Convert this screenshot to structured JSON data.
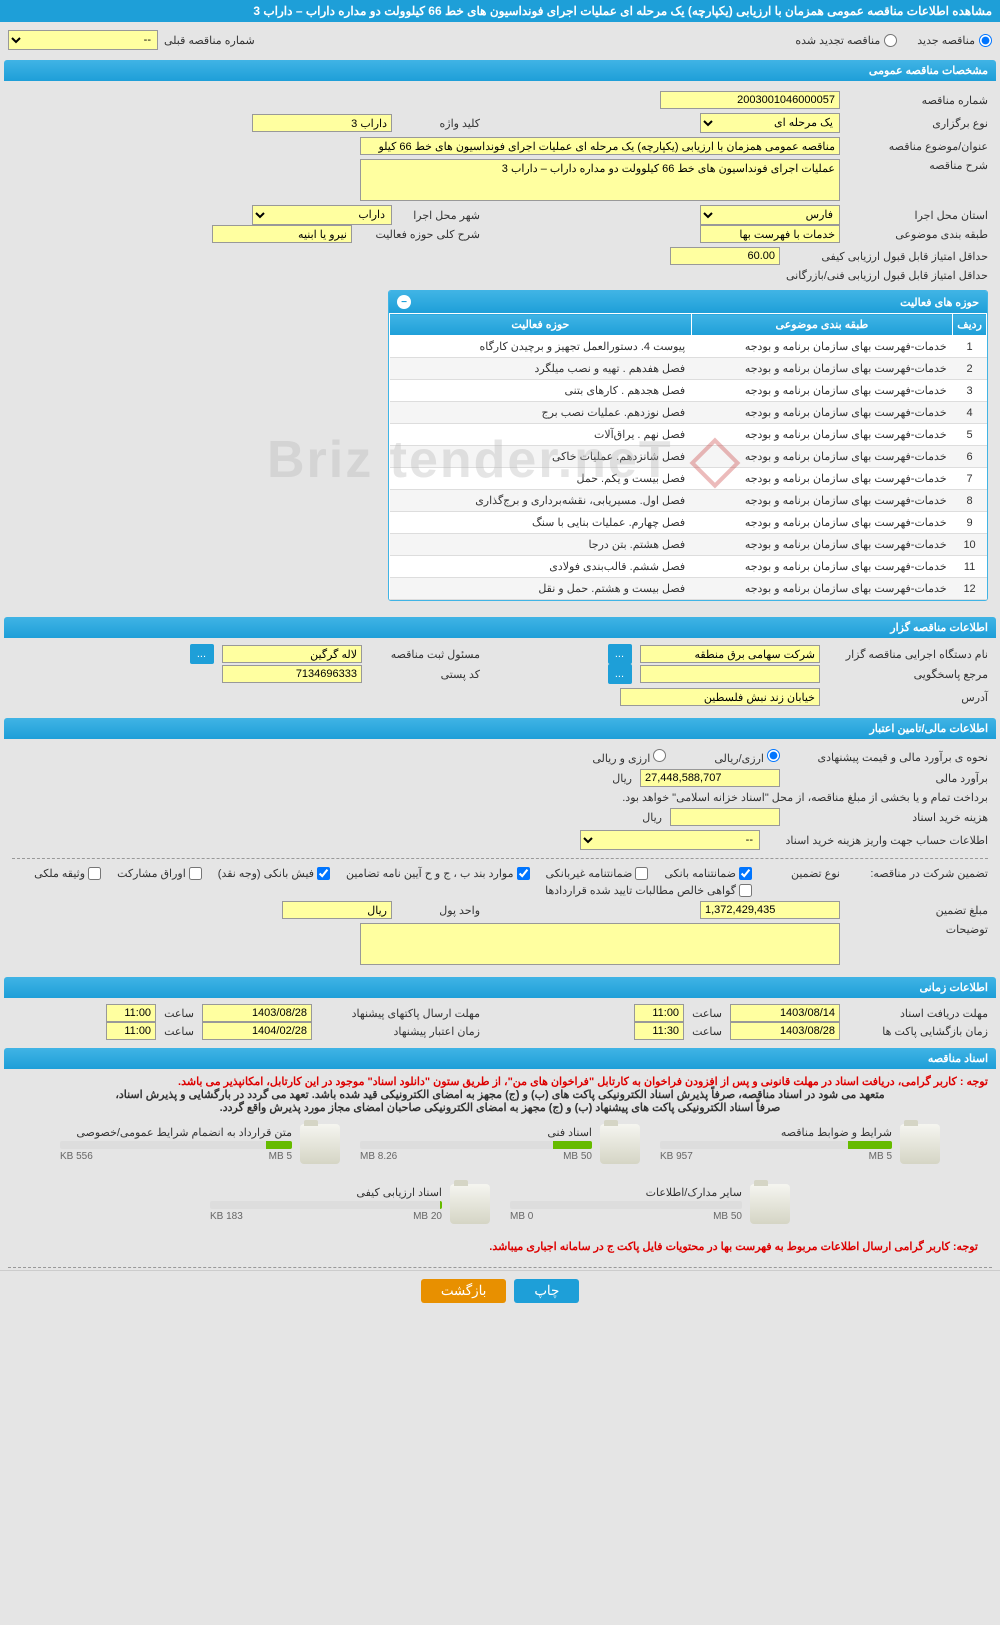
{
  "titleBar": "مشاهده اطلاعات مناقصه عمومی همزمان با ارزیابی (یکپارچه) یک مرحله ای عملیات اجرای فونداسیون های خط 66 کیلوولت دو مداره داراب – داراب 3",
  "radios": {
    "new": "مناقصه جدید",
    "renewed": "مناقصه تجدید شده"
  },
  "prevNumLabel": "شماره مناقصه قبلی",
  "prevNumValue": "--",
  "sections": {
    "general": "مشخصات مناقصه عمومی",
    "activities": "حوزه های فعالیت",
    "organizer": "اطلاعات مناقصه گزار",
    "financial": "اطلاعات مالی/تامین اعتبار",
    "timing": "اطلاعات زمانی",
    "docs": "اسناد مناقصه"
  },
  "general": {
    "tenderNoLabel": "شماره مناقصه",
    "tenderNo": "2003001046000057",
    "typeLabel": "نوع برگزاری",
    "type": "یک مرحله ای",
    "keywordLabel": "کلید واژه",
    "keyword": "داراب 3",
    "subjectLabel": "عنوان/موضوع مناقصه",
    "subject": "مناقصه عمومی همزمان با ارزیابی (یکپارچه) یک مرحله ای عملیات اجرای فونداسیون های خط 66 کیلو",
    "descLabel": "شرح مناقصه",
    "desc": "عملیات اجرای فونداسیون های خط 66 کیلوولت دو مداره داراب – داراب 3",
    "provinceLabel": "استان محل اجرا",
    "province": "فارس",
    "cityLabel": "شهر محل اجرا",
    "city": "داراب",
    "classLabel": "طبقه بندی موضوعی",
    "classification": "خدمات با فهرست بها",
    "actDescLabel": "شرح کلی حوزه فعالیت",
    "actDesc": "نیرو یا ابنیه",
    "minQualLabel": "حداقل امتیاز قابل قبول ارزیابی کیفی",
    "minQual": "60.00",
    "minTechLabel": "حداقل امتیاز قابل قبول ارزیابی فنی/بازرگانی"
  },
  "activityTable": {
    "cols": [
      "ردیف",
      "طبقه بندی موضوعی",
      "حوزه فعالیت"
    ],
    "rows": [
      [
        "1",
        "خدمات-فهرست بهای سازمان برنامه و بودجه",
        "پیوست 4. دستورالعمل تجهیز و برچیدن کارگاه"
      ],
      [
        "2",
        "خدمات-فهرست بهای سازمان برنامه و بودجه",
        "فصل هفدهم . تهیه و نصب میلگرد"
      ],
      [
        "3",
        "خدمات-فهرست بهای سازمان برنامه و بودجه",
        "فصل هجدهم . کارهای بتنی"
      ],
      [
        "4",
        "خدمات-فهرست بهای سازمان برنامه و بودجه",
        "فصل نوزدهم. عملیات نصب برج"
      ],
      [
        "5",
        "خدمات-فهرست بهای سازمان برنامه و بودجه",
        "فصل نهم . یراق‌آلات"
      ],
      [
        "6",
        "خدمات-فهرست بهای سازمان برنامه و بودجه",
        "فصل شانزدهم. عملیات خاکی"
      ],
      [
        "7",
        "خدمات-فهرست بهای سازمان برنامه و بودجه",
        "فصل بیست و یکم. حمل"
      ],
      [
        "8",
        "خدمات-فهرست بهای سازمان برنامه و بودجه",
        "فصل اول. مسیریابی، نقشه‌برداری و برج‌گذاری"
      ],
      [
        "9",
        "خدمات-فهرست بهای سازمان برنامه و بودجه",
        "فصل چهارم. عملیات بنایی با سنگ"
      ],
      [
        "10",
        "خدمات-فهرست بهای سازمان برنامه و بودجه",
        "فصل هشتم. بتن درجا"
      ],
      [
        "11",
        "خدمات-فهرست بهای سازمان برنامه و بودجه",
        "فصل ششم. قالب‌بندی فولادی"
      ],
      [
        "12",
        "خدمات-فهرست بهای سازمان برنامه و بودجه",
        "فصل بیست و هشتم. حمل و نقل"
      ]
    ]
  },
  "organizer": {
    "nameLabel": "نام دستگاه اجرایی مناقصه گزار",
    "name": "شرکت سهامی برق منطقه",
    "regLabel": "مسئول ثبت مناقصه",
    "reg": "لاله گرگین",
    "refLabel": "مرجع پاسخگویی",
    "postalLabel": "کد پستی",
    "postal": "7134696333",
    "addrLabel": "آدرس",
    "addr": "خیابان زند نبش فلسطین"
  },
  "financial": {
    "methodLabel": "نحوه ی برآورد مالی و قیمت پیشنهادی",
    "opt1": "ارزی/ریالی",
    "opt2": "ارزی و ریالی",
    "estLabel": "برآورد مالی",
    "est": "27,448,588,707",
    "rial": "ریال",
    "noteLine": "برداخت تمام و یا بخشی از مبلغ مناقصه، از محل \"اسناد خزانه اسلامی\" خواهد بود.",
    "docCostLabel": "هزینه خرید اسناد",
    "acctLabel": "اطلاعات حساب جهت واریز هزینه خرید اسناد",
    "acctValue": "--",
    "guarLabel": "تضمین شرکت در مناقصه:",
    "guarTypeLabel": "نوع تضمین",
    "checks": {
      "c1": "ضمانتنامه بانکی",
      "c2": "ضمانتنامه غیربانکی",
      "c3": "موارد بند ب ، ج و ح آیین نامه تضامین",
      "c4": "فیش بانکی (وجه نقد)",
      "c5": "اوراق مشارکت",
      "c6": "وثیقه ملکی",
      "c7": "گواهی خالص مطالبات تایید شده قراردادها"
    },
    "guarAmtLabel": "مبلغ تضمین",
    "guarAmt": "1,372,429,435",
    "unitLabel": "واحد پول",
    "unit": "ریال",
    "notesLabel": "توضیحات"
  },
  "timing": {
    "recvLabel": "مهلت دریافت اسناد",
    "recvDate": "1403/08/14",
    "recvTime": "11:00",
    "sendLabel": "مهلت ارسال پاکتهای پیشنهاد",
    "sendDate": "1403/08/28",
    "sendTime": "11:00",
    "openLabel": "زمان بازگشایی پاکت ها",
    "openDate": "1403/08/28",
    "openTime": "11:30",
    "validLabel": "زمان اعتبار پیشنهاد",
    "validDate": "1404/02/28",
    "validTime": "11:00",
    "hourLabel": "ساعت"
  },
  "docs": {
    "note1": "توجه : کاربر گرامی، دریافت اسناد در مهلت قانونی و پس از افزودن فراخوان به کارتابل \"فراخوان های من\"، از طریق ستون \"دانلود اسناد\" موجود در این کارتابل، امکانپذیر می باشد.",
    "note2": "متعهد می شود در اسناد مناقصه، صرفاً پذیرش اسناد الکترونیکی پاکت های (ب) و (ج) مجهز به امضای الکترونیکی قید شده باشد. تعهد می گردد در بارگشایی و پذیرش اسناد،",
    "note3": "صرفاً اسناد الکترونیکی پاکت های پیشنهاد (ب) و (ج) مجهز به امضای الکترونیکی صاحبان امضای مجاز مورد پذیرش واقع گردد.",
    "items": [
      {
        "title": "شرایط و ضوابط مناقصه",
        "used": "957 KB",
        "total": "5 MB",
        "pct": 19
      },
      {
        "title": "اسناد فنی",
        "used": "8.26 MB",
        "total": "50 MB",
        "pct": 17
      },
      {
        "title": "متن قرارداد به انضمام شرایط عمومی/خصوصی",
        "used": "556 KB",
        "total": "5 MB",
        "pct": 11
      },
      {
        "title": "سایر مدارک/اطلاعات",
        "used": "0 MB",
        "total": "50 MB",
        "pct": 0
      },
      {
        "title": "اسناد ارزیابی کیفی",
        "used": "183 KB",
        "total": "20 MB",
        "pct": 1
      }
    ],
    "bottomNote": "توجه: کاربر گرامی ارسال اطلاعات مربوط به فهرست بها در محتویات فایل پاکت ج در سامانه اجباری میباشد."
  },
  "buttons": {
    "print": "چاپ",
    "back": "بازگشت",
    "more": "..."
  },
  "watermark": "Briz tender.neT"
}
